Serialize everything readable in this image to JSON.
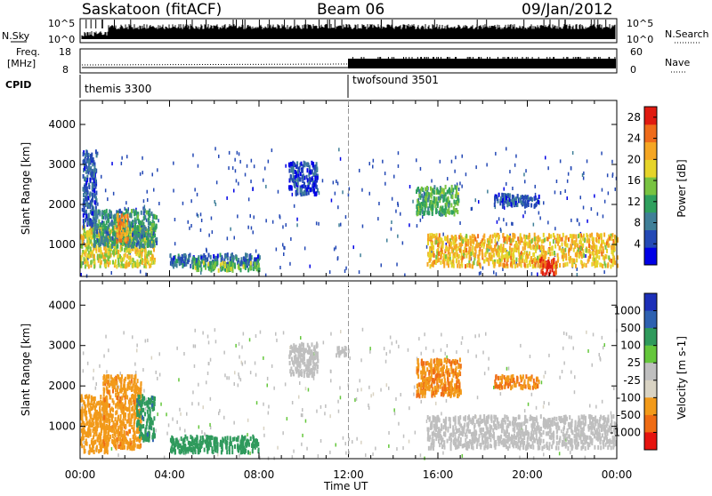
{
  "header": {
    "title": "Saskatoon (fitACF)",
    "beam": "Beam 06",
    "date": "09/Jan/2012"
  },
  "strip_labels": {
    "nsky": "N.Sky",
    "nsearch": "N.Search",
    "freq_line1": "Freq.",
    "freq_line2": "[MHz]",
    "nave": "Nave",
    "cpid": "CPID",
    "nsky_top": "10^5",
    "nsky_bottom": "10^0",
    "freq_top": "18",
    "freq_bottom": "8",
    "nave_top": "60",
    "nave_bottom": "0"
  },
  "cpid_labels": [
    {
      "name": "themis 3300",
      "start": 0
    },
    {
      "name": "twofsound 3501",
      "start": 12
    }
  ],
  "colors": {
    "power": [
      "#0000e6",
      "#2449b5",
      "#3f7f98",
      "#2fa05e",
      "#78c341",
      "#e6d42a",
      "#f5a623",
      "#ef6b1a",
      "#e01a10"
    ],
    "velocity": [
      "#e6140f",
      "#ef6c14",
      "#f29a1a",
      "#d9d3c3",
      "#bfbfbf",
      "#65c73c",
      "#2f9a5c",
      "#2e61b0",
      "#1c2fb8"
    ]
  },
  "chart_data": [
    {
      "type": "heatmap",
      "quantity": "Power",
      "ylabel": "Slant Range [km]",
      "xlabel": "Time UT",
      "ylim": [
        200,
        4600
      ],
      "xlim": [
        0,
        24
      ],
      "yticks": [
        "1000",
        "2000",
        "3000",
        "4000"
      ],
      "xticks": [
        "00:00",
        "04:00",
        "08:00",
        "12:00",
        "16:00",
        "20:00",
        "00:00"
      ],
      "colorbar": {
        "label": "Power [dB]",
        "ticks": [
          "4",
          "8",
          "12",
          "16",
          "20",
          "24",
          "28"
        ],
        "range": [
          0,
          30
        ]
      },
      "regions": [
        {
          "t": [
            0,
            3.3
          ],
          "r": [
            500,
            1500
          ],
          "value": 18
        },
        {
          "t": [
            0.5,
            3.4
          ],
          "r": [
            1000,
            1900
          ],
          "value": 10
        },
        {
          "t": [
            0.1,
            0.7
          ],
          "r": [
            1500,
            3400
          ],
          "value": 6
        },
        {
          "t": [
            1.6,
            2.1
          ],
          "r": [
            1100,
            1800
          ],
          "value": 22
        },
        {
          "t": [
            4.0,
            8.0
          ],
          "r": [
            500,
            800
          ],
          "value": 7
        },
        {
          "t": [
            5.0,
            8.0
          ],
          "r": [
            400,
            600
          ],
          "value": 14
        },
        {
          "t": [
            9.3,
            10.6
          ],
          "r": [
            2300,
            3100
          ],
          "value": 5
        },
        {
          "t": [
            15.0,
            16.9
          ],
          "r": [
            1800,
            2500
          ],
          "value": 13
        },
        {
          "t": [
            15.5,
            24
          ],
          "r": [
            500,
            1300
          ],
          "value": 20
        },
        {
          "t": [
            20.5,
            21.3
          ],
          "r": [
            300,
            700
          ],
          "value": 28
        },
        {
          "t": [
            18.5,
            20.5
          ],
          "r": [
            2000,
            2300
          ],
          "value": 6
        }
      ]
    },
    {
      "type": "heatmap",
      "quantity": "Velocity",
      "ylabel": "Slant Range [km]",
      "xlabel": "Time UT",
      "ylim": [
        200,
        4600
      ],
      "xlim": [
        0,
        24
      ],
      "yticks": [
        "1000",
        "2000",
        "3000",
        "4000"
      ],
      "xticks": [
        "00:00",
        "04:00",
        "08:00",
        "12:00",
        "16:00",
        "20:00",
        "00:00"
      ],
      "colorbar": {
        "label": "Velocity [m s-1]",
        "ticks": [
          "1000",
          "500",
          "100",
          "25",
          "-25",
          "-100",
          "-500",
          "-1000"
        ]
      },
      "regions": [
        {
          "t": [
            0,
            1.2
          ],
          "r": [
            400,
            1800
          ],
          "value": -300
        },
        {
          "t": [
            1.0,
            2.7
          ],
          "r": [
            500,
            2300
          ],
          "value": -400
        },
        {
          "t": [
            2.5,
            3.3
          ],
          "r": [
            700,
            1800
          ],
          "value": 400
        },
        {
          "t": [
            4.0,
            8.0
          ],
          "r": [
            400,
            800
          ],
          "value": 200
        },
        {
          "t": [
            9.3,
            10.6
          ],
          "r": [
            2300,
            3100
          ],
          "value": 0
        },
        {
          "t": [
            11.4,
            12.0
          ],
          "r": [
            2800,
            3000
          ],
          "value": 0
        },
        {
          "t": [
            15.0,
            17.0
          ],
          "r": [
            1800,
            2700
          ],
          "value": -450
        },
        {
          "t": [
            18.5,
            20.5
          ],
          "r": [
            2000,
            2300
          ],
          "value": -500
        },
        {
          "t": [
            15.5,
            24
          ],
          "r": [
            500,
            1300
          ],
          "value": 0
        }
      ]
    }
  ]
}
